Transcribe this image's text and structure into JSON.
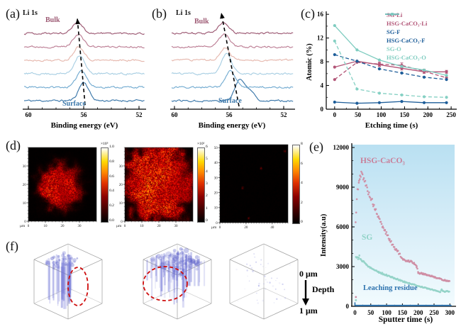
{
  "colors": {
    "maroon": "#9d5a74",
    "steel": "#3c78aa",
    "hsgpink": "#c97f99",
    "teal": "#8fd2c6",
    "blue": "#2d72ae",
    "black": "#111111"
  },
  "panels": {
    "a": {
      "letter": "(a)",
      "title": "Li 1s",
      "bulk": "Bulk",
      "surface": "Surface",
      "xlabel": "Binding energy (eV)",
      "xticks": [
        60,
        56,
        52
      ]
    },
    "b": {
      "letter": "(b)",
      "title": "Li 1s",
      "bulk": "Bulk",
      "surface": "Surface",
      "xlabel": "Binding energy (eV)",
      "xticks": [
        60,
        56,
        52
      ]
    },
    "c": {
      "letter": "(c)",
      "ylabel": "Atomic (%)",
      "xlabel": "Etching time (s)",
      "yticks": [
        0,
        4,
        8,
        12,
        16
      ],
      "xticks": [
        0,
        50,
        100,
        150,
        200,
        250
      ]
    },
    "d": {
      "letter": "(d)",
      "unit": "μm",
      "maps": [
        {
          "xticks": [
            0,
            10,
            20,
            30
          ],
          "yticks": [
            0,
            10,
            20,
            30
          ],
          "domain": 40,
          "colorbar": {
            "exp": "×10⁵",
            "ticks": [
              "1.0",
              "0.8",
              "0.6",
              "0.4",
              "0.2",
              "0.0"
            ]
          }
        },
        {
          "xticks": [
            0,
            10,
            20,
            30
          ],
          "yticks": [
            0,
            10,
            20,
            30
          ],
          "domain": 40,
          "colorbar": {
            "exp": "×10²",
            "ticks": [
              "6",
              "5",
              "4",
              "3",
              "2",
              "1",
              "0"
            ]
          }
        },
        {
          "xticks": [
            0,
            20,
            40
          ],
          "yticks": [
            0,
            10,
            20,
            30,
            40,
            50
          ],
          "domain": 52,
          "colorbar": {
            "exp": "",
            "ticks": [
              "8",
              "6",
              "4",
              "2",
              "0"
            ]
          }
        }
      ]
    },
    "e": {
      "letter": "(e)",
      "ylabel": "Intensity(a.u)",
      "xlabel": "Sputter time (s)",
      "yticks": [
        0,
        3000,
        6000,
        9000,
        12000
      ],
      "xticks": [
        0,
        50,
        100,
        150,
        200,
        250,
        300
      ],
      "labels": {
        "hsg": "HSG-CaCO₃",
        "sg": "SG",
        "leach": "Leaching residue"
      }
    },
    "f": {
      "letter": "(f)",
      "depth_top": "0 μm",
      "depth_mid": "Depth",
      "depth_bottom": "1 μm"
    }
  },
  "chart_data": {
    "panel_a": {
      "type": "spectra",
      "title": "Li 1s",
      "xlabel": "Binding energy (eV)",
      "x_range": [
        60,
        51.5
      ],
      "x_ticks": [
        60,
        56,
        52
      ],
      "annotations": {
        "bulk": "Bulk",
        "surface": "Surface"
      },
      "arrow_ev": [
        56.0,
        56.6
      ],
      "curves": [
        {
          "role": "surface",
          "color": "#3c78aa",
          "peak_ev": 56.0,
          "amp": 26
        },
        {
          "color": "#74acd1",
          "peak_ev": 56.15,
          "amp": 24
        },
        {
          "color": "#a9cfe3",
          "peak_ev": 56.3,
          "amp": 26
        },
        {
          "color": "#e6b8ae",
          "peak_ev": 56.35,
          "amp": 20
        },
        {
          "color": "#bd7f95",
          "peak_ev": 56.4,
          "amp": 18
        },
        {
          "role": "bulk",
          "color": "#9d5a74",
          "peak_ev": 56.45,
          "amp": 16
        }
      ]
    },
    "panel_b": {
      "type": "spectra",
      "title": "Li 1s",
      "xlabel": "Binding energy (eV)",
      "x_range": [
        60,
        51.5
      ],
      "x_ticks": [
        60,
        56,
        52
      ],
      "annotations": {
        "bulk": "Bulk",
        "surface": "Surface"
      },
      "arrow_ev": [
        55.3,
        56.6
      ],
      "curves": [
        {
          "role": "surface",
          "color": "#3c78aa",
          "peak_ev": 55.2,
          "amp": 30,
          "peak2_ev": 54.4,
          "amp2": 12
        },
        {
          "color": "#74acd1",
          "peak_ev": 55.9,
          "amp": 22
        },
        {
          "color": "#a9cfe3",
          "peak_ev": 56.2,
          "amp": 28
        },
        {
          "color": "#e6b8ae",
          "peak_ev": 56.3,
          "amp": 18
        },
        {
          "color": "#bd7f95",
          "peak_ev": 56.35,
          "amp": 18
        },
        {
          "role": "bulk",
          "color": "#9d5a74",
          "peak_ev": 56.4,
          "amp": 16
        }
      ]
    },
    "panel_c": {
      "type": "line",
      "xlabel": "Etching time (s)",
      "ylabel": "Atomic (%)",
      "x": [
        0,
        48,
        96,
        144,
        192,
        240
      ],
      "xlim": [
        -18,
        262
      ],
      "ylim": [
        0,
        16.5
      ],
      "legend_position": "top-right",
      "grid": false,
      "series": [
        {
          "name": "SG-Li",
          "color": "#b25577",
          "dashed": true,
          "values": [
            5.0,
            7.9,
            7.6,
            7.4,
            6.4,
            5.3
          ],
          "err": [
            0,
            0,
            0.35,
            0.4,
            0.35,
            0.3
          ]
        },
        {
          "name": "HSG-CaCO₃-Li",
          "color": "#b25577",
          "dashed": false,
          "values": [
            7.1,
            8.1,
            7.5,
            6.9,
            6.3,
            6.3
          ],
          "err": [
            0,
            0,
            0.3,
            0.3,
            0.25,
            0.25
          ]
        },
        {
          "name": "SG-F",
          "color": "#1d5d99",
          "dashed": true,
          "values": [
            9.2,
            8.1,
            6.8,
            6.1,
            5.4,
            5.0
          ]
        },
        {
          "name": "HSG-CaCO₃-F",
          "color": "#1d5d99",
          "dashed": false,
          "values": [
            1.2,
            1.0,
            1.1,
            1.3,
            1.1,
            1.1
          ]
        },
        {
          "name": "SG-O",
          "color": "#85d0c3",
          "dashed": true,
          "values": [
            11.5,
            3.4,
            2.7,
            2.4,
            2.1,
            2.0
          ]
        },
        {
          "name": "HSG-CaCO₃-O",
          "color": "#7fccc0",
          "dashed": false,
          "values": [
            14.1,
            10.0,
            8.3,
            7.2,
            6.6,
            5.7
          ]
        }
      ]
    },
    "panel_d": {
      "type": "heatmap",
      "maps": [
        {
          "x_range": [
            0,
            40
          ],
          "y_range": [
            0,
            40
          ],
          "unit": "μm",
          "colorbar_scale": "×10⁵",
          "colorbar_ticks": [
            1.0,
            0.8,
            0.6,
            0.4,
            0.2,
            0.0
          ]
        },
        {
          "x_range": [
            0,
            40
          ],
          "y_range": [
            0,
            40
          ],
          "unit": "μm",
          "colorbar_scale": "×10²",
          "colorbar_ticks": [
            6,
            5,
            4,
            3,
            2,
            1,
            0
          ]
        },
        {
          "x_range": [
            0,
            52
          ],
          "y_range": [
            0,
            52
          ],
          "unit": "μm",
          "colorbar_ticks": [
            8,
            6,
            4,
            2,
            0
          ]
        }
      ]
    },
    "panel_e": {
      "type": "scatter",
      "xlabel": "Sputter time (s)",
      "ylabel": "Intensity(a.u)",
      "xlim": [
        -10,
        315
      ],
      "ylim": [
        0,
        12000
      ],
      "series": [
        {
          "name": "HSG-CaCO₃",
          "color": "#cf8da3",
          "anchors": [
            [
              2,
              6300
            ],
            [
              4,
              7000
            ],
            [
              6,
              8200
            ],
            [
              8,
              8800
            ],
            [
              10,
              9000
            ],
            [
              13,
              9400
            ],
            [
              16,
              9700
            ],
            [
              20,
              10050
            ],
            [
              24,
              9900
            ],
            [
              28,
              9700
            ],
            [
              34,
              9200
            ],
            [
              40,
              8800
            ],
            [
              46,
              8400
            ],
            [
              52,
              8100
            ],
            [
              58,
              7700
            ],
            [
              64,
              7300
            ],
            [
              70,
              7000
            ],
            [
              76,
              6600
            ],
            [
              82,
              6300
            ],
            [
              88,
              6000
            ],
            [
              95,
              5700
            ],
            [
              102,
              5400
            ],
            [
              110,
              5000
            ],
            [
              118,
              4700
            ],
            [
              126,
              4400
            ],
            [
              134,
              4200
            ],
            [
              142,
              3900
            ],
            [
              148,
              3600
            ],
            [
              152,
              3500
            ],
            [
              158,
              3480
            ],
            [
              165,
              3450
            ],
            [
              172,
              3420
            ],
            [
              180,
              3380
            ],
            [
              188,
              3200
            ],
            [
              195,
              3000
            ],
            [
              200,
              2550
            ],
            [
              205,
              2500
            ],
            [
              212,
              2480
            ],
            [
              220,
              2430
            ],
            [
              228,
              2380
            ],
            [
              236,
              2320
            ],
            [
              244,
              2260
            ],
            [
              252,
              2210
            ],
            [
              260,
              2150
            ],
            [
              268,
              2080
            ],
            [
              276,
              2020
            ],
            [
              284,
              1970
            ],
            [
              292,
              1920
            ],
            [
              300,
              1880
            ]
          ]
        },
        {
          "name": "SG",
          "color": "#93d3c7",
          "anchors": [
            [
              3,
              3650
            ],
            [
              6,
              3750
            ],
            [
              10,
              3600
            ],
            [
              14,
              3800
            ],
            [
              18,
              3550
            ],
            [
              22,
              3450
            ],
            [
              26,
              3400
            ],
            [
              30,
              3300
            ],
            [
              36,
              3150
            ],
            [
              42,
              3050
            ],
            [
              48,
              2950
            ],
            [
              54,
              2850
            ],
            [
              60,
              2780
            ],
            [
              68,
              2680
            ],
            [
              76,
              2580
            ],
            [
              84,
              2500
            ],
            [
              92,
              2420
            ],
            [
              100,
              2350
            ],
            [
              108,
              2280
            ],
            [
              116,
              2200
            ],
            [
              124,
              2130
            ],
            [
              132,
              2060
            ],
            [
              140,
              1990
            ],
            [
              148,
              1920
            ],
            [
              156,
              1850
            ],
            [
              164,
              1790
            ],
            [
              172,
              1740
            ],
            [
              180,
              1680
            ],
            [
              188,
              1620
            ],
            [
              196,
              1560
            ],
            [
              204,
              1500
            ],
            [
              212,
              1460
            ],
            [
              220,
              1410
            ],
            [
              228,
              1360
            ],
            [
              236,
              1300
            ],
            [
              244,
              1260
            ],
            [
              252,
              1210
            ],
            [
              258,
              1170
            ],
            [
              264,
              1120
            ],
            [
              270,
              1080
            ],
            [
              274,
              1300
            ],
            [
              278,
              1150
            ],
            [
              284,
              1100
            ],
            [
              290,
              1160
            ],
            [
              296,
              1120
            ],
            [
              300,
              1100
            ]
          ]
        },
        {
          "name": "Leaching residue",
          "color": "#2d72ae",
          "line": true,
          "baseline": 60
        }
      ],
      "stray": [
        {
          "x": 3,
          "y": 700,
          "color": "#cf8da3"
        },
        {
          "x": 3,
          "y": 460,
          "color": "#93d3c7"
        }
      ]
    },
    "panel_f": {
      "type": "3d-depth-render",
      "depth_range": [
        "0 μm",
        "1 μm"
      ],
      "cubes": [
        "dense columnar deposit with red dashed ring (side)",
        "dense columnar deposit with large red dashed ring (top)",
        "empty residue"
      ]
    }
  }
}
